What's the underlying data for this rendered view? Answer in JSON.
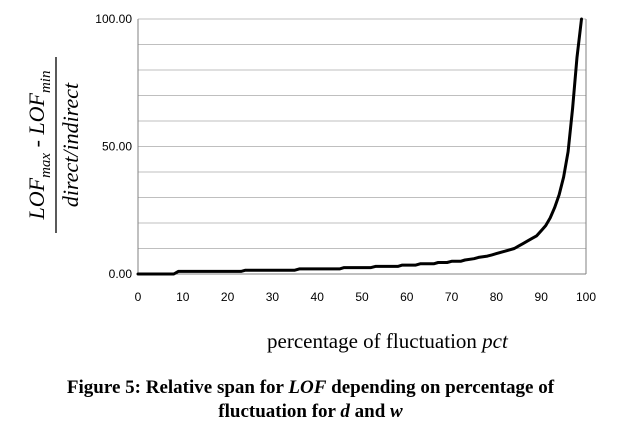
{
  "chart_data": {
    "type": "line",
    "ylabel": {
      "numerator": {
        "main1": "LOF",
        "sub1": "max",
        "sep": " - ",
        "main2": "LOF",
        "sub2": "min"
      },
      "denominator": "direct/indirect"
    },
    "xlabel": {
      "text": "percentage of fluctuation ",
      "var": "pct"
    },
    "xlim": [
      0,
      100
    ],
    "ylim": [
      0,
      100
    ],
    "x_ticks": [
      "0",
      "10",
      "20",
      "30",
      "40",
      "50",
      "60",
      "70",
      "80",
      "90",
      "100"
    ],
    "y_tick_labels": [
      {
        "value": 0,
        "label": "0.00"
      },
      {
        "value": 50,
        "label": "50.00"
      },
      {
        "value": 100,
        "label": "100.00"
      }
    ],
    "grid_y": [
      10,
      20,
      30,
      40,
      50,
      60,
      70,
      80,
      90,
      100
    ],
    "series": [
      {
        "color": "#000000",
        "x": [
          0,
          8,
          9,
          23,
          24,
          35,
          36,
          45,
          46,
          52,
          53,
          58,
          59,
          62,
          63,
          66,
          67,
          69,
          70,
          72,
          73,
          75,
          76,
          78,
          79,
          80,
          81,
          82,
          83,
          84,
          85,
          86,
          87,
          88,
          89,
          90,
          91,
          92,
          93,
          94,
          95,
          96,
          97,
          98,
          99
        ],
        "y": [
          0,
          0,
          1,
          1,
          1.5,
          1.5,
          2,
          2,
          2.5,
          2.5,
          3,
          3,
          3.5,
          3.5,
          4,
          4,
          4.5,
          4.5,
          5,
          5,
          5.5,
          6,
          6.5,
          7,
          7.5,
          8,
          8.5,
          9,
          9.5,
          10,
          11,
          12,
          13,
          14,
          15,
          17,
          19,
          22,
          26,
          31,
          38,
          48,
          65,
          85,
          100
        ]
      }
    ]
  },
  "caption": {
    "part1": "Figure 5: Relative span for ",
    "lof": "LOF",
    "part2": " depending on percentage of",
    "part3": "fluctuation for ",
    "d": "d",
    "part4": " and ",
    "w": "w"
  }
}
